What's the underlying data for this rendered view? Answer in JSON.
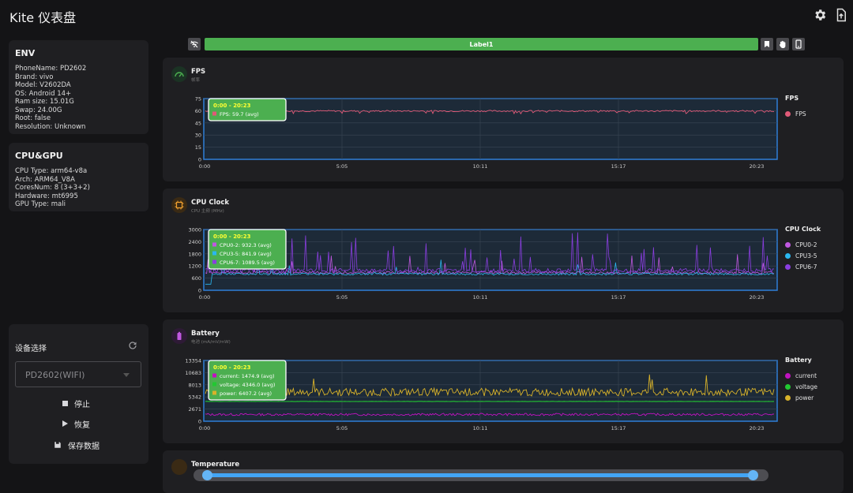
{
  "app": {
    "title": "Kite 仪表盘"
  },
  "env": {
    "title": "ENV",
    "lines": [
      "PhoneName: PD2602",
      "Brand: vivo",
      "Model: V2602DA",
      "OS: Android 14+",
      "Ram size: 15.01G",
      "Swap: 24.00G",
      "Root: false",
      "Resolution: Unknown"
    ]
  },
  "cpu_gpu": {
    "title": "CPU&GPU",
    "lines": [
      "CPU Type: arm64-v8a",
      "Arch: ARM64_V8A",
      "CoresNum: 8 (3+3+2)",
      "Hardware: mt6995",
      "GPU Type: mali"
    ]
  },
  "device": {
    "title": "设备选择",
    "selected": "PD2602(WIFI)",
    "stop_label": "停止",
    "resume_label": "恢复",
    "save_label": "保存数据"
  },
  "toolbar": {
    "label": "Label1"
  },
  "colors": {
    "accent_green": "#4caf50",
    "fps": "#e05a78",
    "cpu0": "#c058e0",
    "cpu3": "#2ab7f0",
    "cpu6": "#8a3ee0",
    "current": "#c013c0",
    "voltage": "#22c832",
    "power": "#d8b22a",
    "axis_frame": "#2f7fd8"
  },
  "charts": {
    "fps": {
      "title": "FPS",
      "subtitle": "帧率",
      "y_ticks": [
        "0",
        "15",
        "30",
        "45",
        "60",
        "75"
      ],
      "x_ticks": [
        "0:00",
        "5:05",
        "10:11",
        "15:17",
        "20:23"
      ],
      "tooltip": {
        "time": "0:00 - 20:23",
        "lines": [
          "FPS: 59.7 (avg)"
        ]
      },
      "legend": {
        "title": "FPS",
        "items": [
          "FPS"
        ]
      }
    },
    "cpu": {
      "title": "CPU Clock",
      "subtitle": "CPU 主频 (MHz)",
      "y_ticks": [
        "0",
        "600",
        "1200",
        "1800",
        "2400",
        "3000"
      ],
      "x_ticks": [
        "0:00",
        "5:05",
        "10:11",
        "15:17",
        "20:23"
      ],
      "tooltip": {
        "time": "0:00 - 20:23",
        "lines": [
          "CPU0-2: 932.3 (avg)",
          "CPU3-5: 841.9 (avg)",
          "CPU6-7: 1089.5 (avg)"
        ]
      },
      "legend": {
        "title": "CPU Clock",
        "items": [
          "CPU0-2",
          "CPU3-5",
          "CPU6-7"
        ]
      }
    },
    "battery": {
      "title": "Battery",
      "subtitle": "电池 (mA/mV/mW)",
      "y_ticks": [
        "0",
        "2671",
        "5342",
        "8013",
        "10683",
        "13354"
      ],
      "x_ticks": [
        "0:00",
        "5:05",
        "10:11",
        "15:17",
        "20:23"
      ],
      "tooltip": {
        "time": "0:00 - 20:23",
        "lines": [
          "current: 1474.9 (avg)",
          "voltage: 4346.0 (avg)",
          "power: 6407.2 (avg)"
        ]
      },
      "legend": {
        "title": "Battery",
        "items": [
          "current",
          "voltage",
          "power"
        ]
      }
    },
    "temperature": {
      "title": "Temperature"
    }
  },
  "chart_data": [
    {
      "type": "line",
      "title": "FPS",
      "ylim": [
        0,
        75
      ],
      "x_range": [
        "0:00",
        "20:23"
      ],
      "series": [
        {
          "name": "FPS",
          "mean": 59.7
        }
      ]
    },
    {
      "type": "line",
      "title": "CPU Clock",
      "ylim": [
        0,
        3000
      ],
      "x_range": [
        "0:00",
        "20:23"
      ],
      "series": [
        {
          "name": "CPU0-2",
          "mean": 932.3
        },
        {
          "name": "CPU3-5",
          "mean": 841.9
        },
        {
          "name": "CPU6-7",
          "mean": 1089.5
        }
      ]
    },
    {
      "type": "line",
      "title": "Battery",
      "ylim": [
        0,
        13354
      ],
      "x_range": [
        "0:00",
        "20:23"
      ],
      "series": [
        {
          "name": "current",
          "mean": 1474.9
        },
        {
          "name": "voltage",
          "mean": 4346.0
        },
        {
          "name": "power",
          "mean": 6407.2
        }
      ]
    }
  ],
  "slider": {
    "start": 0.0,
    "end": 1.0
  }
}
